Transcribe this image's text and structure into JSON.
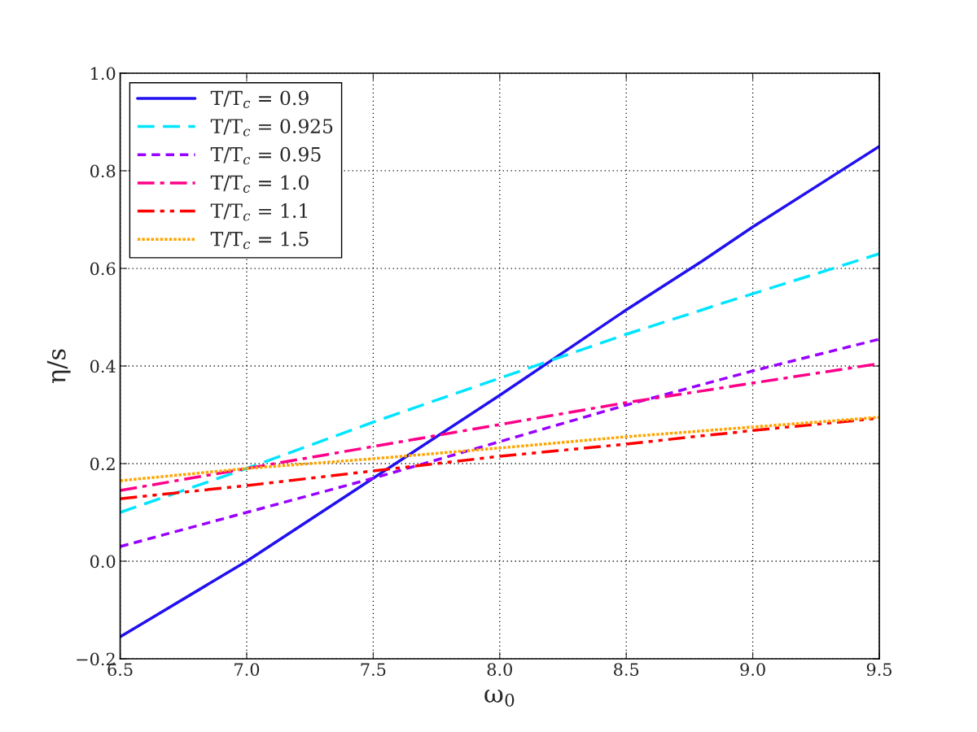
{
  "chart_data": {
    "type": "line",
    "xlabel": "ω$_{0}$",
    "ylabel": "η/s",
    "x": [
      6.5,
      7.0,
      7.5,
      8.0,
      8.5,
      8.8,
      8.9,
      9.0,
      9.5
    ],
    "series": [
      {
        "name": "T/T$_{c}$ = 0.9",
        "color": "#2010f0",
        "line_style": "solid",
        "values": [
          -0.155,
          0.0,
          0.17,
          0.34,
          0.515,
          0.615,
          0.65,
          0.685,
          0.85
        ]
      },
      {
        "name": "T/T$_{c}$ = 0.925",
        "color": "#00e5ff",
        "line_style": "dashed",
        "values": [
          0.1,
          0.19,
          0.285,
          0.375,
          0.465,
          0.515,
          0.532,
          0.548,
          0.63
        ]
      },
      {
        "name": "T/T$_{c}$ = 0.95",
        "color": "#9900ff",
        "line_style": "dotted",
        "values": [
          0.03,
          0.1,
          0.17,
          0.245,
          0.32,
          0.362,
          0.376,
          0.39,
          0.455
        ]
      },
      {
        "name": "T/T$_{c}$ = 1.0",
        "color": "#ff0088",
        "line_style": "dashdot",
        "values": [
          0.145,
          0.19,
          0.235,
          0.28,
          0.325,
          0.349,
          0.357,
          0.365,
          0.405
        ]
      },
      {
        "name": "T/T$_{c}$ = 1.1",
        "color": "#ff0000",
        "line_style": "dashdotdot",
        "values": [
          0.128,
          0.155,
          0.185,
          0.215,
          0.24,
          0.257,
          0.262,
          0.268,
          0.293
        ]
      },
      {
        "name": "T/T$_{c}$ = 1.5",
        "color": "#ffa500",
        "line_style": "densedotted",
        "values": [
          0.165,
          0.19,
          0.21,
          0.232,
          0.255,
          0.267,
          0.271,
          0.275,
          0.295
        ]
      }
    ],
    "xlim": [
      6.5,
      9.5
    ],
    "ylim": [
      -0.2,
      1.0
    ],
    "xticks": [
      {
        "value": 6.5,
        "label": "6.5"
      },
      {
        "value": 7.0,
        "label": "7.0"
      },
      {
        "value": 7.5,
        "label": "7.5"
      },
      {
        "value": 8.0,
        "label": "8.0"
      },
      {
        "value": 8.5,
        "label": "8.5"
      },
      {
        "value": 9.0,
        "label": "9.0"
      },
      {
        "value": 9.5,
        "label": "9.5"
      }
    ],
    "yticks": [
      {
        "value": -0.2,
        "label": "−0.2"
      },
      {
        "value": 0.0,
        "label": "0.0"
      },
      {
        "value": 0.2,
        "label": "0.2"
      },
      {
        "value": 0.4,
        "label": "0.4"
      },
      {
        "value": 0.6,
        "label": "0.6"
      },
      {
        "value": 0.8,
        "label": "0.8"
      },
      {
        "value": 1.0,
        "label": "1.0"
      }
    ],
    "grid": true,
    "legend": "top left"
  }
}
